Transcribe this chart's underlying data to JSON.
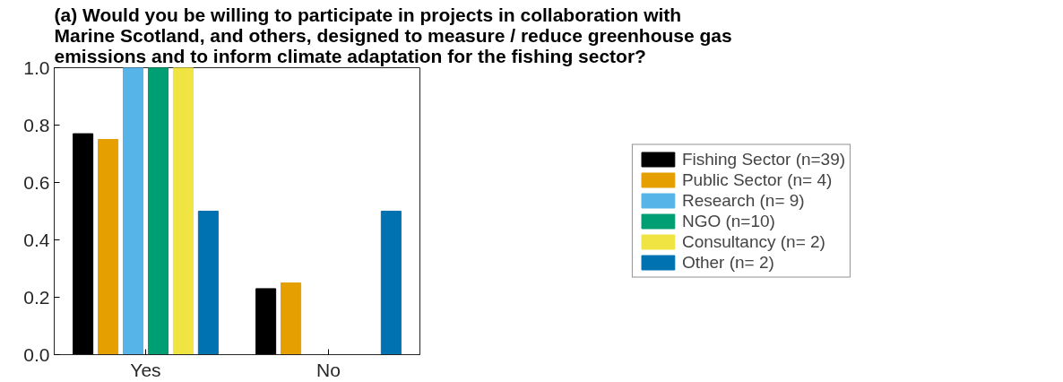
{
  "chart_data": {
    "type": "bar",
    "title": "(a) Would you be willing to participate in projects in collaboration with\nMarine Scotland, and others, designed to measure / reduce greenhouse gas\nemissions and to inform climate adaptation for the fishing sector?",
    "categories": [
      "Yes",
      "No"
    ],
    "series": [
      {
        "name": "Fishing Sector (n=39)",
        "color": "#000000",
        "values": [
          0.77,
          0.23
        ]
      },
      {
        "name": "Public Sector (n= 4)",
        "color": "#e69f00",
        "values": [
          0.75,
          0.25
        ]
      },
      {
        "name": "Research (n= 9)",
        "color": "#56b4e9",
        "values": [
          1.0,
          0.0
        ]
      },
      {
        "name": "NGO (n=10)",
        "color": "#009e73",
        "values": [
          1.0,
          0.0
        ]
      },
      {
        "name": "Consultancy (n= 2)",
        "color": "#f0e442",
        "values": [
          1.0,
          0.0
        ]
      },
      {
        "name": "Other (n= 2)",
        "color": "#0072b2",
        "values": [
          0.5,
          0.5
        ]
      }
    ],
    "ylim": [
      0,
      1
    ],
    "yticks": [
      {
        "value": 0,
        "label": "0.0"
      },
      {
        "value": 0.2,
        "label": "0.2"
      },
      {
        "value": 0.4,
        "label": "0.4"
      },
      {
        "value": 0.6,
        "label": "0.6"
      },
      {
        "value": 0.8,
        "label": "0.8"
      },
      {
        "value": 1.0,
        "label": "1.0"
      }
    ],
    "grid": false,
    "legend": "right"
  }
}
